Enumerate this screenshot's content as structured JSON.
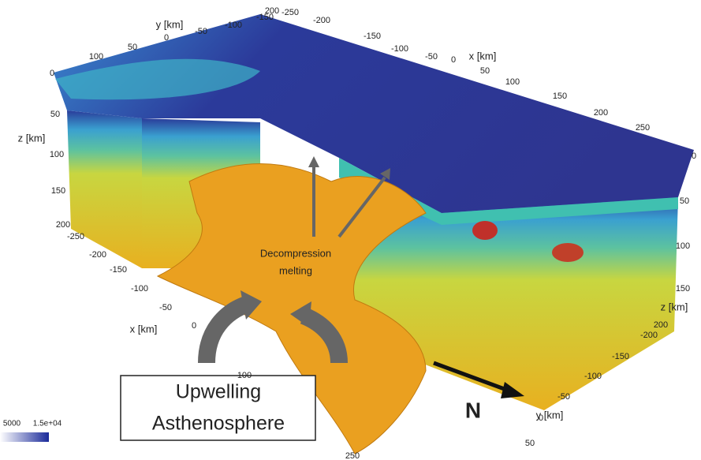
{
  "top_axes": {
    "y_label": "y [km]",
    "y_ticks": [
      100,
      50,
      0,
      -50,
      -100,
      -150,
      200
    ],
    "x_label": "x [km]",
    "x_ticks": [
      -250,
      -200,
      -150,
      -100,
      -50,
      0,
      50,
      100,
      150,
      200,
      250
    ]
  },
  "left_axes": {
    "z_label": "z [km]",
    "z_ticks": [
      0,
      50,
      100,
      150,
      200
    ],
    "x_label": "x [km]",
    "x_ticks": [
      -250,
      -200,
      -150,
      -100,
      -50,
      0,
      100,
      250
    ]
  },
  "right_axes": {
    "z_label": "z [km]",
    "z_ticks": [
      0,
      50,
      100,
      150,
      200
    ],
    "y_label": "y [km]",
    "y_ticks": [
      -200,
      -150,
      -100,
      -50,
      0,
      50
    ]
  },
  "annotations": {
    "melting": [
      "Decompression",
      "melting"
    ],
    "upwelling": [
      "Upwelling",
      "Asthenosphere"
    ],
    "north": "N"
  },
  "colorbar": {
    "ticks": [
      5000,
      "1.5e+04"
    ]
  }
}
